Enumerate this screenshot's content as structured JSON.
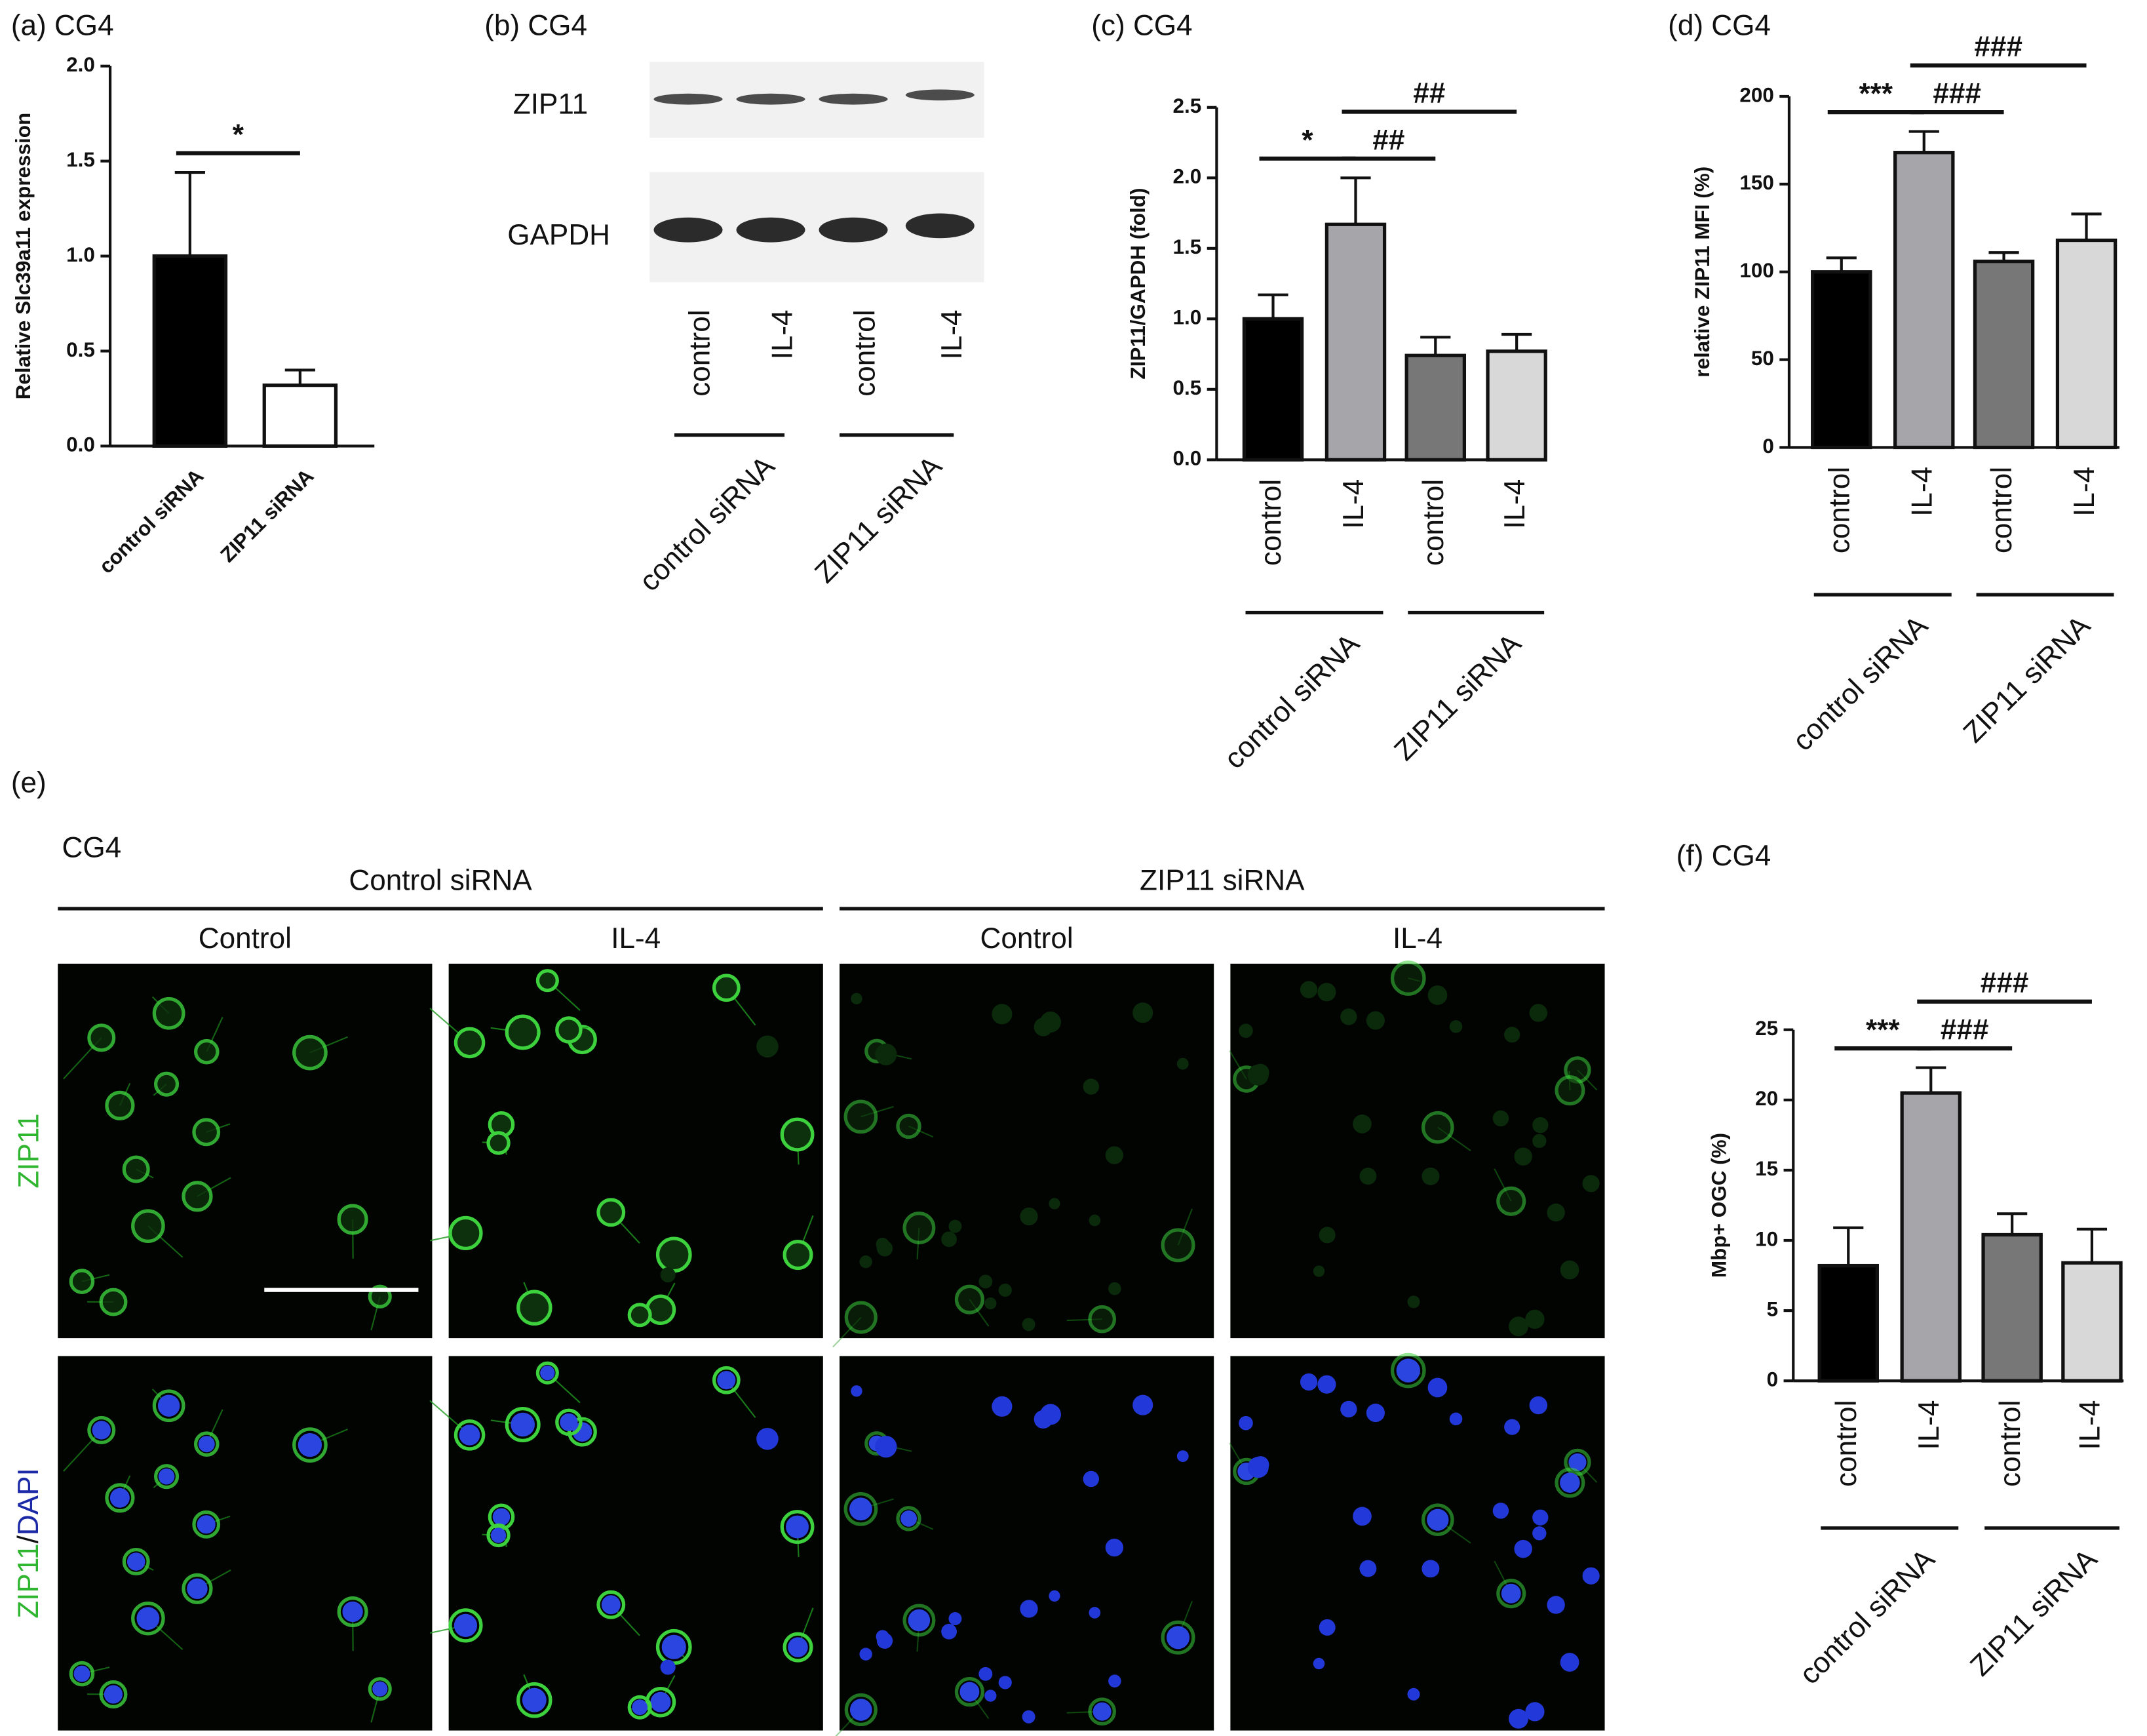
{
  "chart_data": [
    {
      "type": "bar",
      "title": "(a) CG4",
      "ylabel": "Relative Slc39a11 expression",
      "categories": [
        "control siRNA",
        "ZIP11 siRNA"
      ],
      "values": [
        1.0,
        0.32
      ],
      "errors": [
        0.44,
        0.08
      ],
      "colors": [
        "#000000",
        "#ffffff"
      ],
      "ylim": [
        0,
        2
      ],
      "yticks": [
        {
          "value": 0,
          "label": "0.0"
        },
        {
          "value": 0.5,
          "label": "0.5"
        },
        {
          "value": 1,
          "label": "1.0"
        },
        {
          "value": 1.5,
          "label": "1.5"
        },
        {
          "value": 2,
          "label": "2.0"
        }
      ],
      "brackets": [
        {
          "text": "*",
          "from": 0,
          "to": 1
        }
      ]
    },
    {
      "type": "blot",
      "title": "(b) CG4",
      "bands": [
        "ZIP11",
        "GAPDH"
      ],
      "categories": [
        "control",
        "IL-4",
        "control",
        "IL-4"
      ],
      "groups": [
        "control siRNA",
        "ZIP11 siRNA"
      ]
    },
    {
      "type": "bar",
      "title": "(c) CG4",
      "ylabel": "ZIP11/GAPDH (fold)",
      "categories": [
        "control",
        "IL-4",
        "control",
        "IL-4"
      ],
      "groups": [
        "control siRNA",
        "ZIP11 siRNA"
      ],
      "values": [
        1.0,
        1.67,
        0.74,
        0.77
      ],
      "errors": [
        0.17,
        0.33,
        0.13,
        0.12
      ],
      "colors": [
        "#000000",
        "#a5a5aa",
        "#777777",
        "#d8d8d8"
      ],
      "ylim": [
        0,
        2.5
      ],
      "yticks": [
        {
          "value": 0,
          "label": "0.0"
        },
        {
          "value": 0.5,
          "label": "0.5"
        },
        {
          "value": 1,
          "label": "1.0"
        },
        {
          "value": 1.5,
          "label": "1.5"
        },
        {
          "value": 2,
          "label": "2.0"
        },
        {
          "value": 2.5,
          "label": "2.5"
        }
      ],
      "brackets": [
        {
          "text": "*",
          "from": 0,
          "to": 1
        },
        {
          "text": "##",
          "from": 1,
          "to": 2
        },
        {
          "text": "##",
          "from": 1,
          "to": 3
        }
      ]
    },
    {
      "type": "bar",
      "title": "(d) CG4",
      "ylabel": "relative ZIP11 MFI (%)",
      "categories": [
        "control",
        "IL-4",
        "control",
        "IL-4"
      ],
      "groups": [
        "control siRNA",
        "ZIP11 siRNA"
      ],
      "values": [
        100,
        168,
        106,
        118
      ],
      "errors": [
        8,
        12,
        5,
        15
      ],
      "colors": [
        "#000000",
        "#a5a5aa",
        "#777777",
        "#d8d8d8"
      ],
      "ylim": [
        0,
        200
      ],
      "yticks": [
        0,
        50,
        100,
        150,
        200
      ],
      "brackets": [
        {
          "text": "***",
          "from": 0,
          "to": 1
        },
        {
          "text": "###",
          "from": 1,
          "to": 2
        },
        {
          "text": "###",
          "from": 1,
          "to": 3
        }
      ]
    },
    {
      "type": "micrographs",
      "title": "(e)",
      "subtitle": "CG4",
      "groups": [
        "Control siRNA",
        "ZIP11 siRNA"
      ],
      "columns": [
        "Control",
        "IL-4",
        "Control",
        "IL-4"
      ],
      "rows": [
        [
          "ZIP11"
        ],
        [
          "ZIP11",
          "/",
          "DAPI"
        ]
      ],
      "row_colors": [
        [
          "#2fb52f"
        ],
        [
          "#2fb52f",
          "#111111",
          "#1c2aa8"
        ]
      ]
    },
    {
      "type": "bar",
      "title": "(f) CG4",
      "ylabel": "Mbp+ OGC (%)",
      "categories": [
        "control",
        "IL-4",
        "control",
        "IL-4"
      ],
      "groups": [
        "control siRNA",
        "ZIP11 siRNA"
      ],
      "values": [
        8.2,
        20.5,
        10.4,
        8.4
      ],
      "errors": [
        2.7,
        1.8,
        1.5,
        2.4
      ],
      "colors": [
        "#000000",
        "#a5a5aa",
        "#777777",
        "#d8d8d8"
      ],
      "ylim": [
        0,
        25
      ],
      "yticks": [
        0,
        5,
        10,
        15,
        20,
        25
      ],
      "brackets": [
        {
          "text": "***",
          "from": 0,
          "to": 1
        },
        {
          "text": "###",
          "from": 1,
          "to": 2
        },
        {
          "text": "###",
          "from": 1,
          "to": 3
        }
      ]
    }
  ]
}
